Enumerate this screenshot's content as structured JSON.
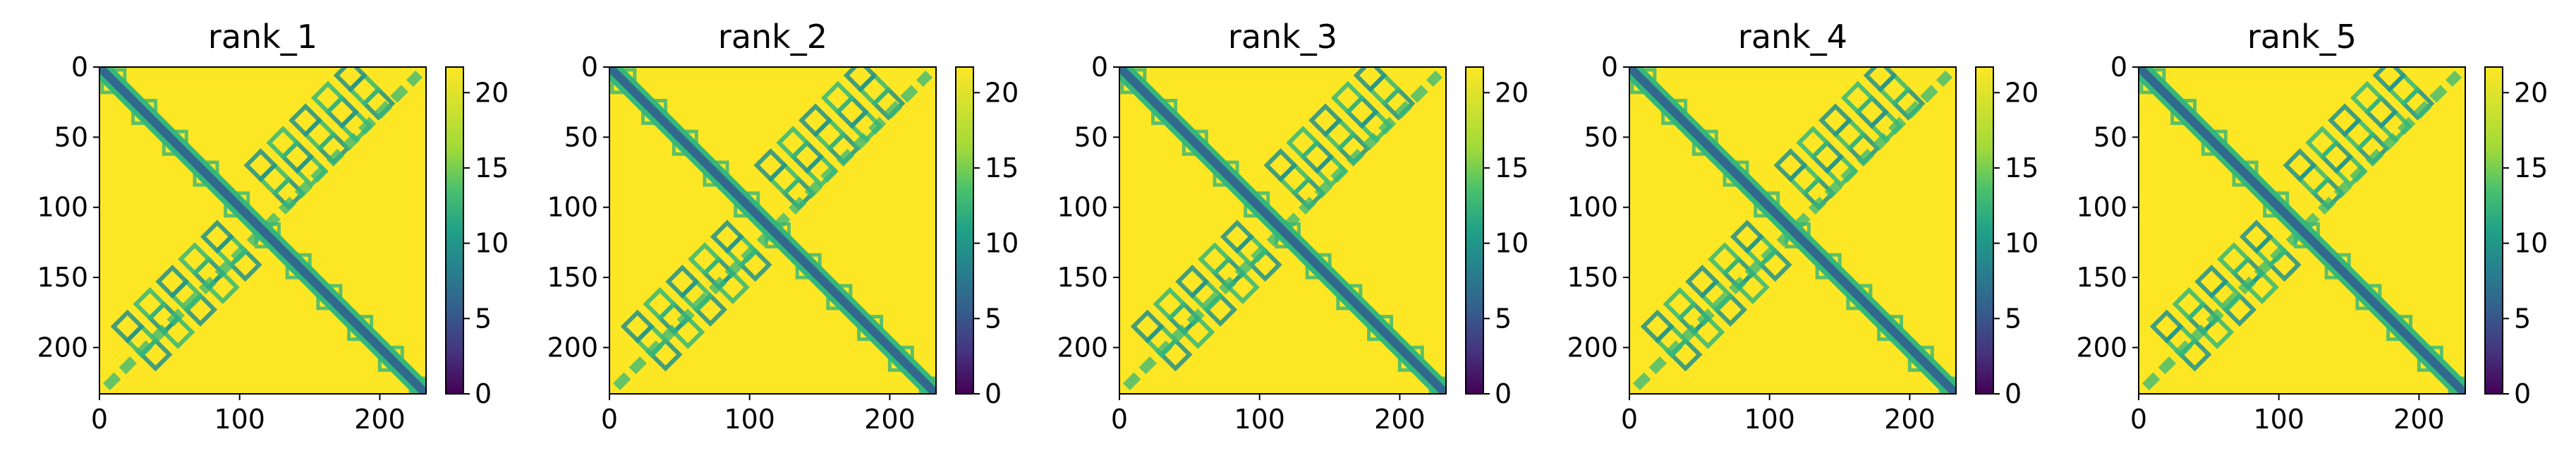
{
  "chart_data": [
    {
      "type": "heatmap",
      "title": "rank_1",
      "x_ticks": [
        "0",
        "100",
        "200"
      ],
      "y_ticks": [
        "0",
        "50",
        "100",
        "150",
        "200"
      ],
      "xlim": [
        0,
        233
      ],
      "ylim": [
        233,
        0
      ],
      "colorbar": {
        "ticks": [
          "0",
          "5",
          "10",
          "15",
          "20"
        ],
        "range": [
          0,
          21.7
        ],
        "colormap": "viridis"
      }
    },
    {
      "type": "heatmap",
      "title": "rank_2",
      "x_ticks": [
        "0",
        "100",
        "200"
      ],
      "y_ticks": [
        "0",
        "50",
        "100",
        "150",
        "200"
      ],
      "xlim": [
        0,
        233
      ],
      "ylim": [
        233,
        0
      ],
      "colorbar": {
        "ticks": [
          "0",
          "5",
          "10",
          "15",
          "20"
        ],
        "range": [
          0,
          21.7
        ],
        "colormap": "viridis"
      }
    },
    {
      "type": "heatmap",
      "title": "rank_3",
      "x_ticks": [
        "0",
        "100",
        "200"
      ],
      "y_ticks": [
        "0",
        "50",
        "100",
        "150",
        "200"
      ],
      "xlim": [
        0,
        233
      ],
      "ylim": [
        233,
        0
      ],
      "colorbar": {
        "ticks": [
          "0",
          "5",
          "10",
          "15",
          "20"
        ],
        "range": [
          0,
          21.7
        ],
        "colormap": "viridis"
      }
    },
    {
      "type": "heatmap",
      "title": "rank_4",
      "x_ticks": [
        "0",
        "100",
        "200"
      ],
      "y_ticks": [
        "0",
        "50",
        "100",
        "150",
        "200"
      ],
      "xlim": [
        0,
        233
      ],
      "ylim": [
        233,
        0
      ],
      "colorbar": {
        "ticks": [
          "0",
          "5",
          "10",
          "15",
          "20"
        ],
        "range": [
          0,
          21.7
        ],
        "colormap": "viridis"
      }
    },
    {
      "type": "heatmap",
      "title": "rank_5",
      "x_ticks": [
        "0",
        "100",
        "200"
      ],
      "y_ticks": [
        "0",
        "50",
        "100",
        "150",
        "200"
      ],
      "xlim": [
        0,
        233
      ],
      "ylim": [
        233,
        0
      ],
      "colorbar": {
        "ticks": [
          "0",
          "5",
          "10",
          "15",
          "20"
        ],
        "range": [
          0,
          21.7
        ],
        "colormap": "viridis"
      }
    }
  ],
  "colors": {
    "background": "#fde725",
    "diagonal": "#31688e",
    "contact": "#35b779",
    "contact_dark": "#21918c",
    "min": "#440154"
  }
}
